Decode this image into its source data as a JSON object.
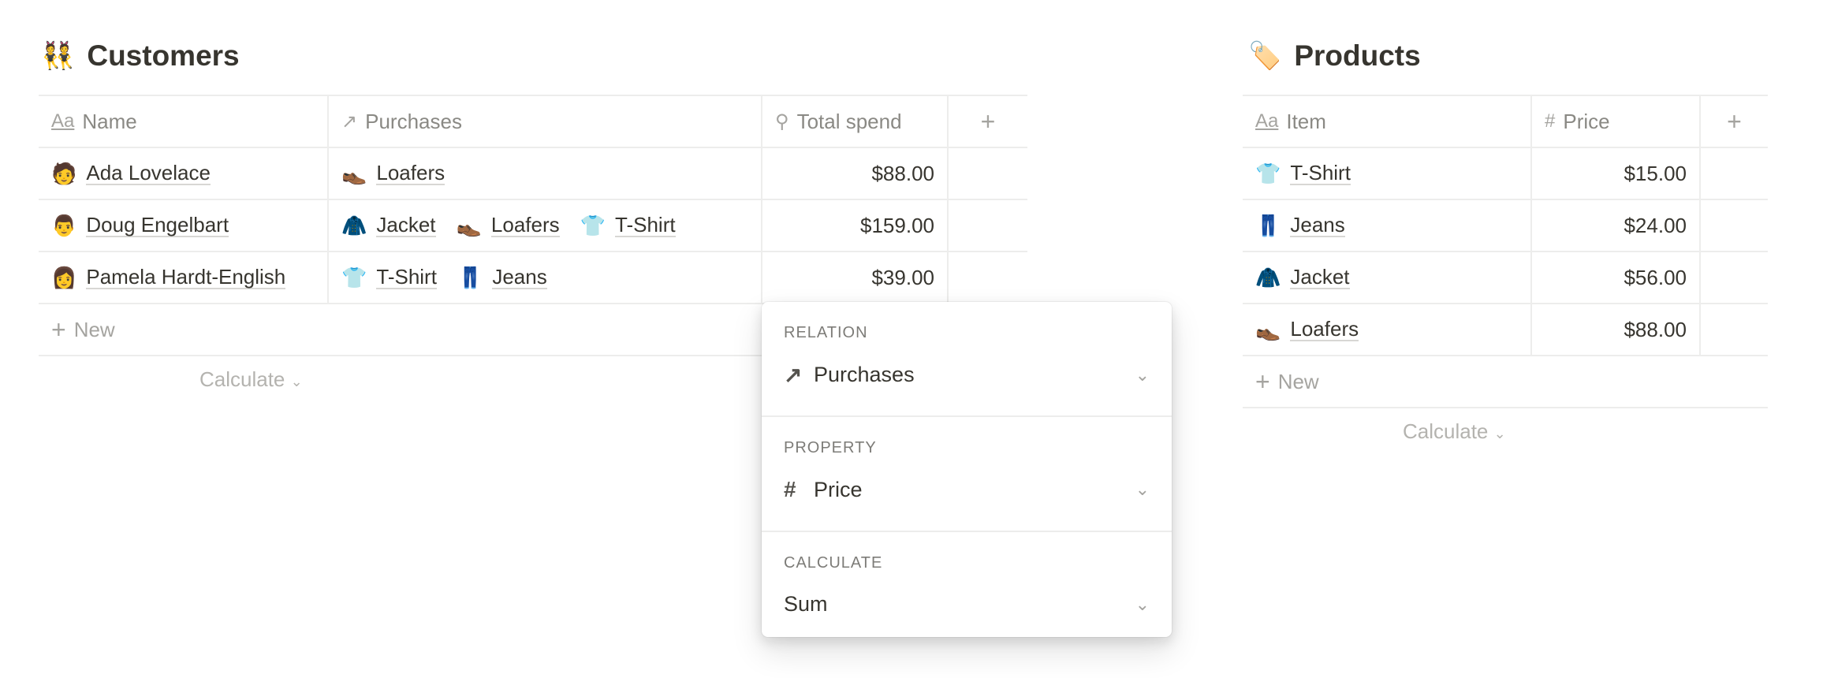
{
  "customers": {
    "title": "Customers",
    "icon": "dancers-emoji",
    "columns": [
      {
        "icon": "text-aa-icon",
        "glyph": "Aa",
        "label": "Name"
      },
      {
        "icon": "relation-arrow-icon",
        "glyph": "↗",
        "label": "Purchases"
      },
      {
        "icon": "search-rollup-icon",
        "glyph": "⚲",
        "label": "Total spend"
      }
    ],
    "add_column": "+",
    "rows": [
      {
        "avatar": "🧑",
        "name": "Ada Lovelace",
        "purchases": [
          {
            "emoji": "👞",
            "label": "Loafers"
          }
        ],
        "total": "$88.00"
      },
      {
        "avatar": "👨",
        "name": "Doug Engelbart",
        "purchases": [
          {
            "emoji": "🧥",
            "label": "Jacket"
          },
          {
            "emoji": "👞",
            "label": "Loafers"
          },
          {
            "emoji": "👕",
            "label": "T-Shirt"
          }
        ],
        "total": "$159.00"
      },
      {
        "avatar": "👩",
        "name": "Pamela Hardt-English",
        "purchases": [
          {
            "emoji": "👕",
            "label": "T-Shirt"
          },
          {
            "emoji": "👖",
            "label": "Jeans"
          }
        ],
        "total": "$39.00"
      }
    ],
    "new_label": "New",
    "calculate_label": "Calculate"
  },
  "products": {
    "title": "Products",
    "icon": "price-tag-emoji",
    "columns": [
      {
        "icon": "text-aa-icon",
        "glyph": "Aa",
        "label": "Item"
      },
      {
        "icon": "hash-icon",
        "glyph": "#",
        "label": "Price"
      }
    ],
    "add_column": "+",
    "rows": [
      {
        "emoji": "👕",
        "item": "T-Shirt",
        "price": "$15.00"
      },
      {
        "emoji": "👖",
        "item": "Jeans",
        "price": "$24.00"
      },
      {
        "emoji": "🧥",
        "item": "Jacket",
        "price": "$56.00"
      },
      {
        "emoji": "👞",
        "item": "Loafers",
        "price": "$88.00"
      }
    ],
    "new_label": "New",
    "calculate_label": "Calculate"
  },
  "rollup_popup": {
    "relation": {
      "label": "RELATION",
      "value": "Purchases",
      "icon": "relation-arrow-icon"
    },
    "property": {
      "label": "PROPERTY",
      "value": "Price",
      "icon": "hash-icon"
    },
    "calculate": {
      "label": "CALCULATE",
      "value": "Sum"
    }
  }
}
